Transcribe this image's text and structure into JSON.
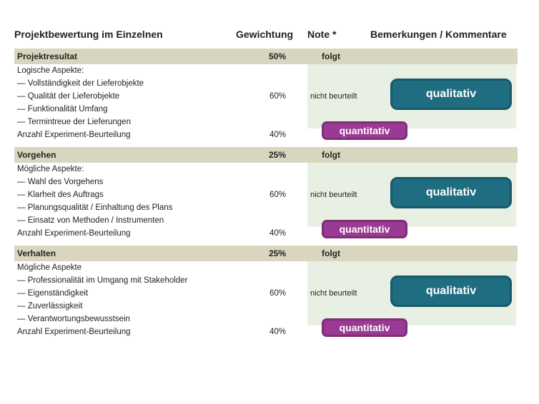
{
  "header": {
    "title": "Projektbewertung im Einzelnen",
    "weight": "Gewichtung",
    "note": "Note *",
    "remarks": "Bemerkungen / Kommentare"
  },
  "badges": {
    "qualitativ": "qualitativ",
    "quantitativ": "quantitativ"
  },
  "colors": {
    "section_header_bg": "#d9d6bf",
    "green_bg": "#e8f0e4",
    "qual_bg": "#1e6d80",
    "qual_border": "#185a6a",
    "quant_bg": "#9b3a94",
    "quant_border": "#7d2f77"
  },
  "sections": [
    {
      "title": "Projektresultat",
      "weight": "50%",
      "note": "folgt",
      "aspects_label": "Logische Aspekte:",
      "aspects": [
        "— Vollständigkeit der Lieferobjekte",
        "— Qualität der Lieferobjekte",
        "— Funktionalität Umfang",
        "— Termintreue der Lieferungen"
      ],
      "mid_weight": "60%",
      "mid_note": "nicht beurteilt",
      "last_label": "Anzahl Experiment-Beurteilung",
      "last_weight": "40%"
    },
    {
      "title": "Vorgehen",
      "weight": "25%",
      "note": "folgt",
      "aspects_label": "Mögliche Aspekte:",
      "aspects": [
        "— Wahl des Vorgehens",
        "— Klarheit des Auftrags",
        "— Planungsqualität / Einhaltung des Plans",
        "— Einsatz von Methoden / Instrumenten"
      ],
      "mid_weight": "60%",
      "mid_note": "nicht beurteilt",
      "last_label": "Anzahl Experiment-Beurteilung",
      "last_weight": "40%"
    },
    {
      "title": "Verhalten",
      "weight": "25%",
      "note": "folgt",
      "aspects_label": "Mögliche Aspekte",
      "aspects": [
        "— Professionalität im Umgang mit Stakeholder",
        "— Eigenständigkeit",
        "— Zuverlässigkeit",
        "— Verantwortungsbewusstsein"
      ],
      "mid_weight": "60%",
      "mid_note": "nicht beurteilt",
      "last_label": "Anzahl Experiment-Beurteilung",
      "last_weight": "40%"
    }
  ]
}
